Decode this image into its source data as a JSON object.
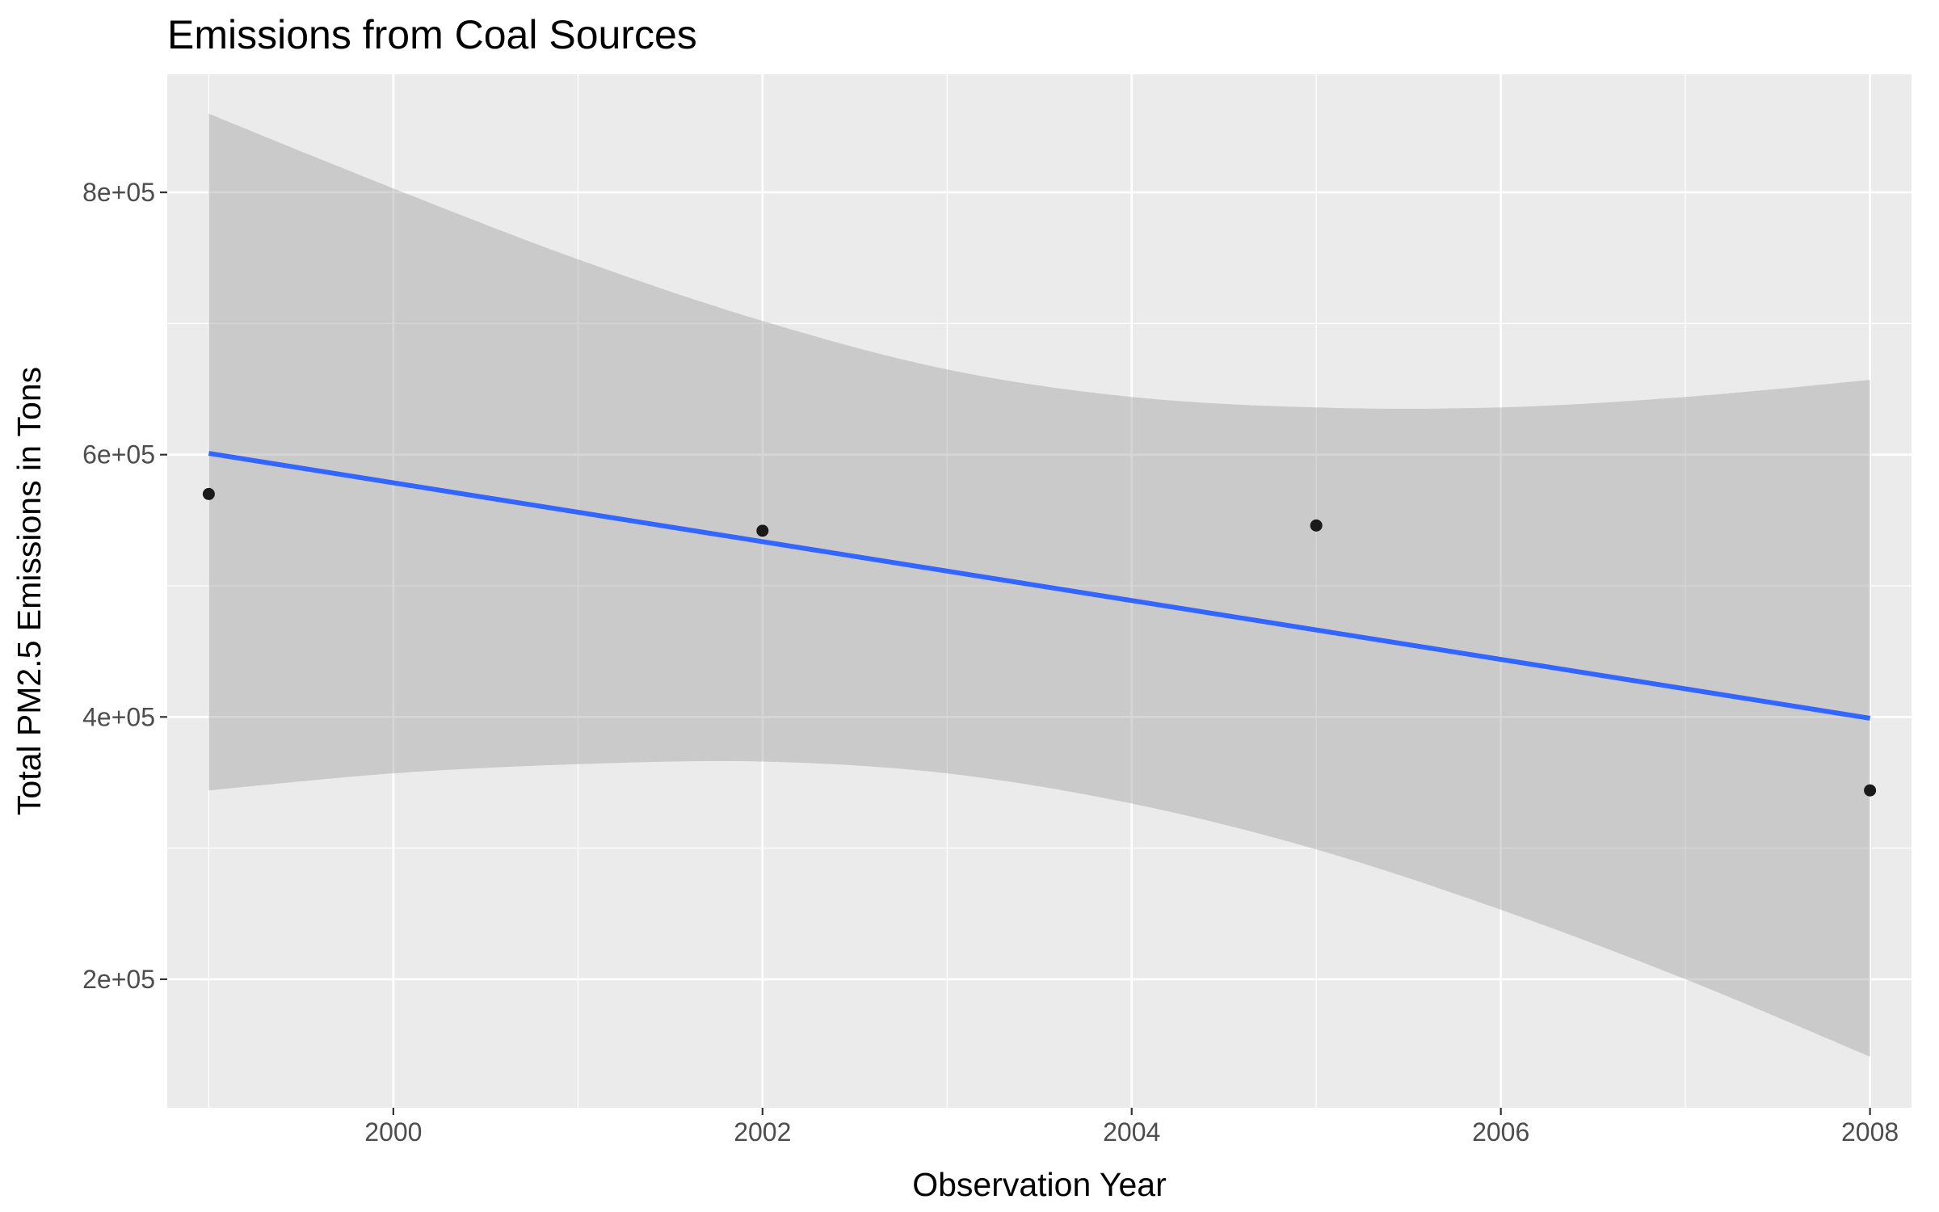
{
  "chart_data": {
    "type": "scatter",
    "title": "Emissions from Coal Sources",
    "xlabel": "Observation Year",
    "ylabel": "Total PM2.5 Emissions in Tons",
    "xlim": [
      1998.775,
      2008.225
    ],
    "ylim": [
      102000,
      890000
    ],
    "x_ticks": [
      2000,
      2002,
      2004,
      2006,
      2008
    ],
    "x_tick_labels": [
      "2000",
      "2002",
      "2004",
      "2006",
      "2008"
    ],
    "y_ticks": [
      200000,
      400000,
      600000,
      800000
    ],
    "y_tick_labels": [
      "2e+05",
      "4e+05",
      "6e+05",
      "8e+05"
    ],
    "grid": true,
    "series": [
      {
        "type": "scatter",
        "x": [
          1999,
          2002,
          2005,
          2008
        ],
        "y": [
          570000,
          542000,
          546000,
          344000
        ]
      }
    ],
    "fit_line": {
      "method": "linear",
      "x": [
        1999,
        2008
      ],
      "y": [
        601000,
        399000
      ]
    },
    "confidence_band": {
      "x": [
        1999,
        2000,
        2001,
        2002,
        2003,
        2004,
        2005,
        2006,
        2007,
        2008
      ],
      "upper": [
        860000,
        803000,
        749000,
        702000,
        665000,
        644000,
        636000,
        636000,
        644000,
        657000
      ],
      "lower": [
        344000,
        357000,
        364000,
        366000,
        357000,
        334000,
        299000,
        253000,
        200000,
        141000
      ]
    },
    "colors": {
      "panel": "#EBEBEB",
      "grid": "#FFFFFF",
      "points": "#1A1A1A",
      "fit_line": "#3366FF",
      "band": "#999999"
    }
  }
}
